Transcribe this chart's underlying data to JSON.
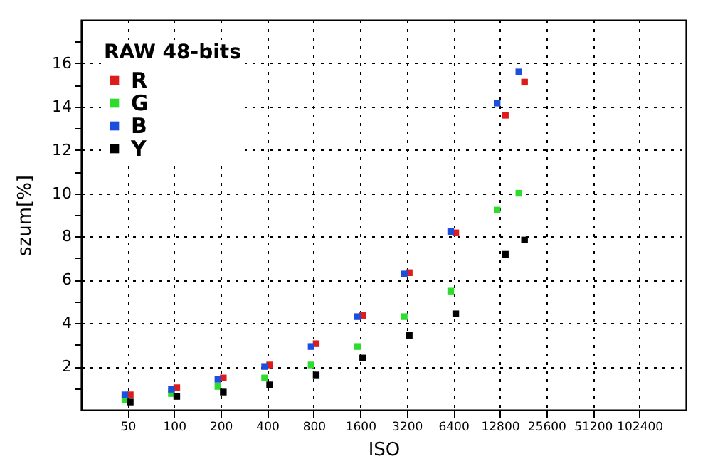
{
  "chart_data": {
    "type": "scatter",
    "xlabel": "ISO",
    "ylabel": "szum[%]",
    "legend_title": "RAW 48-bits",
    "legend": "top left",
    "marker": "square",
    "grid": true,
    "log": "x",
    "xlim": [
      25,
      204800
    ],
    "xticks": [
      50,
      100,
      200,
      400,
      800,
      1600,
      3200,
      6400,
      12800,
      25600,
      51200,
      102400
    ],
    "ylim": [
      0,
      18
    ],
    "yticks": [
      {
        "value": 1,
        "label": null
      },
      2,
      {
        "value": 3,
        "label": null
      },
      4,
      {
        "value": 5,
        "label": null
      },
      6,
      {
        "value": 7,
        "label": null
      },
      8,
      {
        "value": 9,
        "label": null
      },
      10,
      {
        "value": 11,
        "label": null
      },
      12,
      {
        "value": 13,
        "label": null
      },
      14,
      {
        "value": 15,
        "label": null
      },
      16,
      {
        "value": 17,
        "label": null
      }
    ],
    "series": [
      {
        "name": "R",
        "color": "#dd1c1c",
        "x": [
          52,
          104,
          208,
          415,
          830,
          1660,
          3320,
          6640,
          13900,
          18500
        ],
        "values": [
          0.69,
          1.02,
          1.47,
          2.07,
          3.05,
          4.36,
          6.33,
          8.17,
          13.6,
          15.13
        ]
      },
      {
        "name": "G",
        "color": "#2edc2e",
        "x": [
          48,
          96,
          192,
          385,
          770,
          1540,
          3080,
          6160,
          12300,
          17000
        ],
        "values": [
          0.45,
          0.75,
          1.08,
          1.47,
          2.07,
          2.92,
          4.3,
          5.48,
          9.22,
          10.0
        ]
      },
      {
        "name": "B",
        "color": "#1c4fdc",
        "x": [
          48,
          96,
          192,
          385,
          770,
          1540,
          3080,
          6160,
          12300,
          17000
        ],
        "values": [
          0.69,
          0.95,
          1.41,
          2.0,
          2.92,
          4.3,
          6.27,
          8.23,
          14.16,
          15.6
        ]
      },
      {
        "name": "Y",
        "color": "#000000",
        "x": [
          52,
          104,
          208,
          415,
          830,
          1660,
          3320,
          6640,
          13900,
          18500
        ],
        "values": [
          0.36,
          0.62,
          0.82,
          1.15,
          1.61,
          2.39,
          3.44,
          4.43,
          7.18,
          7.84
        ]
      }
    ]
  }
}
